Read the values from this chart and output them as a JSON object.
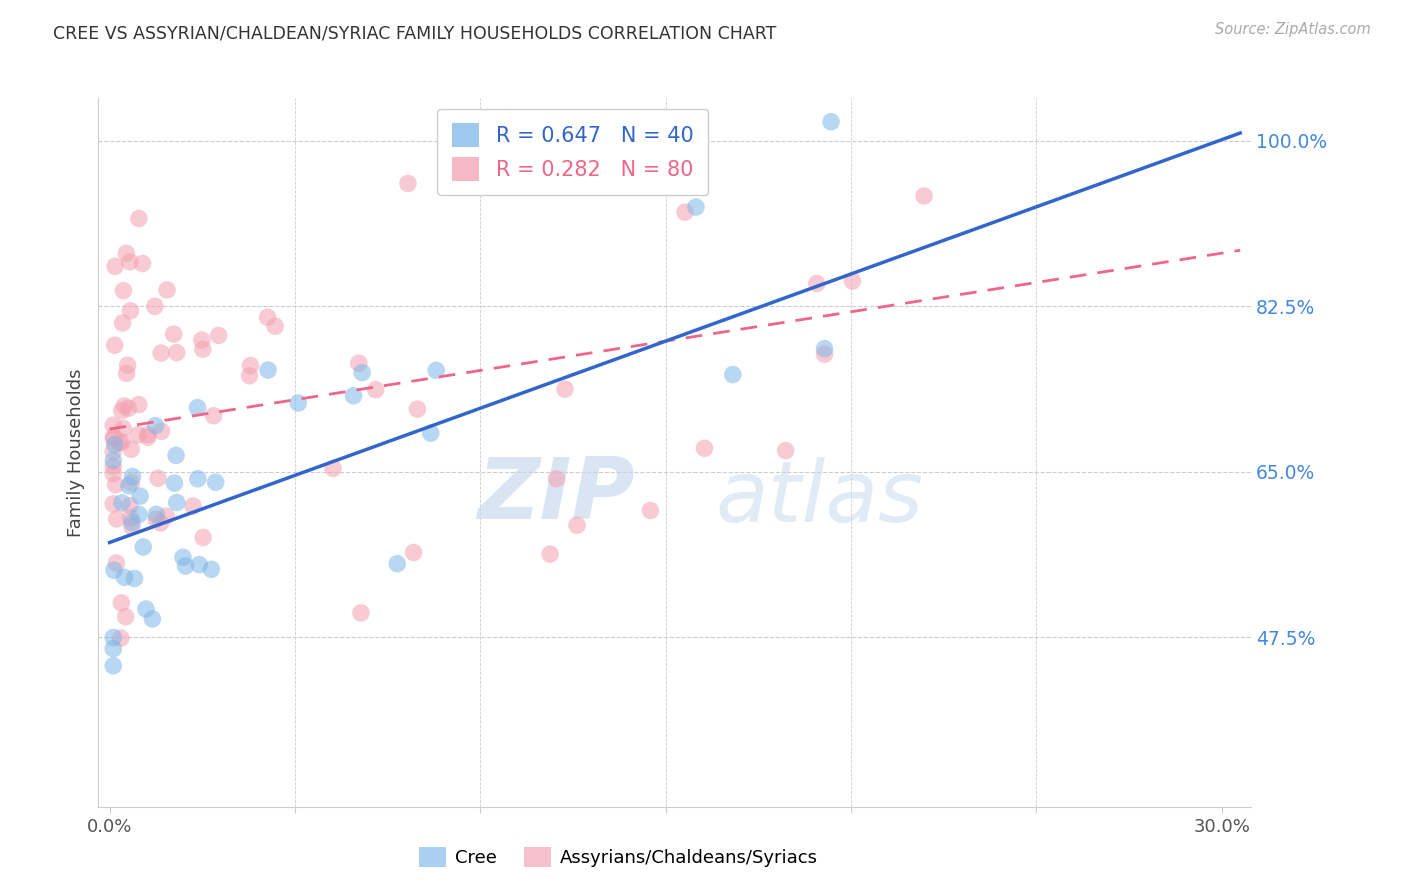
{
  "title": "CREE VS ASSYRIAN/CHALDEAN/SYRIAC FAMILY HOUSEHOLDS CORRELATION CHART",
  "source": "Source: ZipAtlas.com",
  "ylabel": "Family Households",
  "cree_color": "#7EB6E8",
  "assyrian_color": "#F4A0B0",
  "cree_R": 0.647,
  "cree_N": 40,
  "assyrian_R": 0.282,
  "assyrian_N": 80,
  "reg_blue": "#3366CC",
  "reg_pink": "#EE6688",
  "watermark_zip": "ZIP",
  "watermark_atlas": "atlas",
  "x_min": -0.003,
  "x_max": 0.308,
  "y_min": 0.295,
  "y_max": 1.045,
  "yticks": [
    0.475,
    0.65,
    0.825,
    1.0
  ],
  "ytick_labels": [
    "47.5%",
    "65.0%",
    "82.5%",
    "100.0%"
  ],
  "cree_intercept": 0.575,
  "cree_slope": 1.42,
  "assyrian_intercept": 0.695,
  "assyrian_slope": 0.62,
  "legend_labels": [
    "Cree",
    "Assyrians/Chaldeans/Syriacs"
  ],
  "tick_color": "#4488DD",
  "grid_color": "#CCCCCC"
}
